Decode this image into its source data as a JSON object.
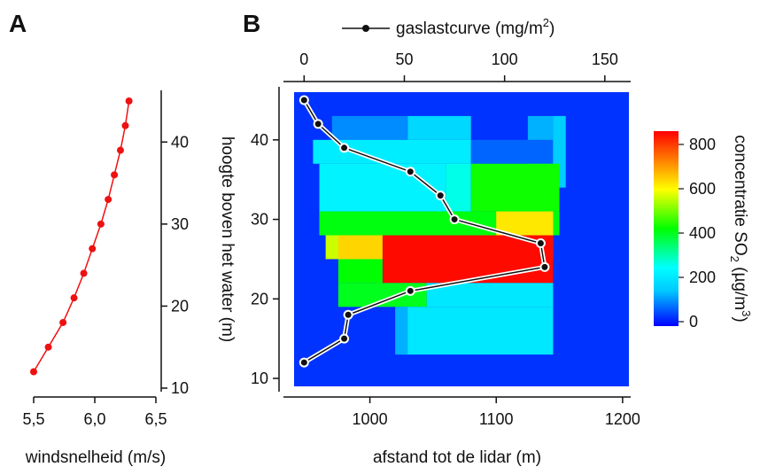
{
  "chart_data": [
    {
      "panel": "A",
      "type": "line",
      "xlabel": "windsnelheid (m/s)",
      "ylabel": "hoogte boven het water (m)",
      "xlim": [
        5.5,
        6.5
      ],
      "ylim": [
        10,
        45
      ],
      "xticks": [
        "5,5",
        "6,0",
        "6,5"
      ],
      "yticks": [
        10,
        20,
        30,
        40
      ],
      "x": [
        5.5,
        5.62,
        5.74,
        5.83,
        5.91,
        5.98,
        6.05,
        6.11,
        6.16,
        6.21,
        6.25,
        6.28
      ],
      "y": [
        12,
        15,
        18,
        21,
        24,
        27,
        30,
        33,
        36,
        39,
        42,
        45
      ],
      "color": "#ee1111"
    },
    {
      "panel": "B",
      "type": "heatmap",
      "xlabel": "afstand tot de lidar (m)",
      "ylabel": "hoogte boven het water (m)",
      "top_xlabel": "gaslastcurve (mg/m2)",
      "xlim": [
        940,
        1205
      ],
      "ylim": [
        9,
        46
      ],
      "xticks": [
        1000,
        1100,
        1200
      ],
      "yticks": [
        10,
        20,
        30,
        40
      ],
      "top_xlim": [
        -5,
        162
      ],
      "top_xticks": [
        0,
        50,
        100,
        150
      ],
      "colorbar": {
        "label": "concentratie SO2 (µg/m3)",
        "min": -20,
        "max": 860,
        "ticks": [
          0,
          200,
          400,
          600,
          800
        ],
        "stops": [
          "#0000ff",
          "#00c8ff",
          "#00ffff",
          "#00ff00",
          "#ffff00",
          "#ff8000",
          "#ff0000"
        ]
      },
      "background_value": 20,
      "cells": [
        {
          "x0": 970,
          "x1": 1030,
          "y0": 40,
          "y1": 43,
          "v": 90
        },
        {
          "x0": 1030,
          "x1": 1080,
          "y0": 40,
          "y1": 43,
          "v": 170
        },
        {
          "x0": 1125,
          "x1": 1145,
          "y0": 37,
          "y1": 43,
          "v": 120
        },
        {
          "x0": 955,
          "x1": 1080,
          "y0": 37,
          "y1": 40,
          "v": 210
        },
        {
          "x0": 1080,
          "x1": 1145,
          "y0": 37,
          "y1": 40,
          "v": 60
        },
        {
          "x0": 1145,
          "x1": 1155,
          "y0": 34,
          "y1": 43,
          "v": 150
        },
        {
          "x0": 960,
          "x1": 1060,
          "y0": 31,
          "y1": 37,
          "v": 220
        },
        {
          "x0": 1060,
          "x1": 1080,
          "y0": 31,
          "y1": 37,
          "v": 260
        },
        {
          "x0": 1080,
          "x1": 1150,
          "y0": 31,
          "y1": 37,
          "v": 430
        },
        {
          "x0": 960,
          "x1": 1150,
          "y0": 28,
          "y1": 31,
          "v": 410
        },
        {
          "x0": 1100,
          "x1": 1145,
          "y0": 28,
          "y1": 31,
          "v": 620
        },
        {
          "x0": 965,
          "x1": 1145,
          "y0": 25,
          "y1": 28,
          "v": 560
        },
        {
          "x0": 975,
          "x1": 1010,
          "y0": 25,
          "y1": 28,
          "v": 640
        },
        {
          "x0": 1010,
          "x1": 1145,
          "y0": 22,
          "y1": 28,
          "v": 850
        },
        {
          "x0": 975,
          "x1": 1010,
          "y0": 22,
          "y1": 25,
          "v": 420
        },
        {
          "x0": 975,
          "x1": 1045,
          "y0": 19,
          "y1": 22,
          "v": 400
        },
        {
          "x0": 1045,
          "x1": 1145,
          "y0": 19,
          "y1": 22,
          "v": 200
        },
        {
          "x0": 1025,
          "x1": 1145,
          "y0": 13,
          "y1": 19,
          "v": 200
        },
        {
          "x0": 1020,
          "x1": 1030,
          "y0": 13,
          "y1": 19,
          "v": 120
        }
      ],
      "series": [
        {
          "name": "gaslastcurve (mg/m2)",
          "gaslast": [
            0,
            7,
            20,
            53,
            68,
            75,
            118,
            120,
            53,
            22,
            20,
            0
          ],
          "y": [
            45,
            42,
            39,
            36,
            33,
            30,
            27,
            24,
            21,
            18,
            15,
            12
          ]
        }
      ]
    }
  ]
}
